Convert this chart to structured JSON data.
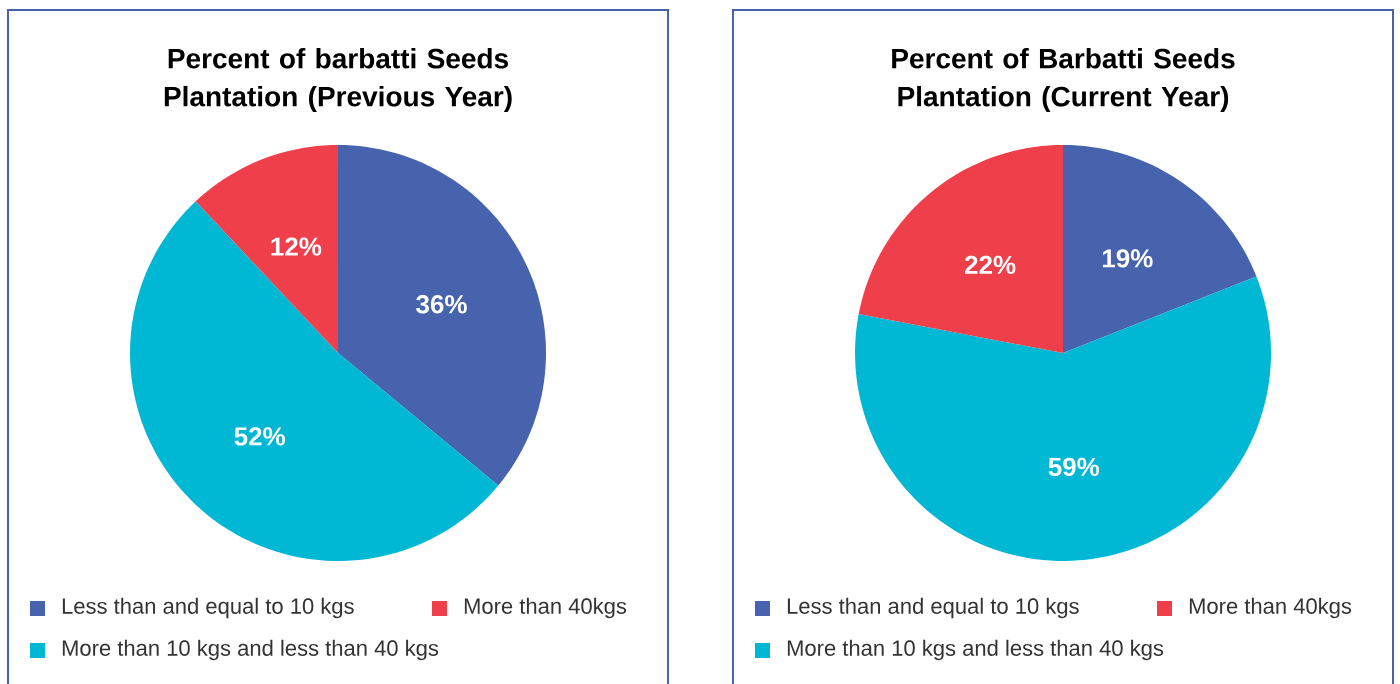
{
  "chart_data": [
    {
      "type": "pie",
      "title": "Percent of barbatti Seeds Plantation (Previous Year)",
      "categories": [
        "Less than and equal to 10 kgs",
        "More than 10 kgs and less than 40 kgs",
        "More than 40kgs"
      ],
      "values": [
        36,
        52,
        12
      ],
      "value_labels": [
        "36%",
        "52%",
        "12%"
      ],
      "colors": [
        "#4763ae",
        "#00b8d4",
        "#ef3f4a"
      ],
      "legend": "bottom"
    },
    {
      "type": "pie",
      "title": "Percent of Barbatti Seeds Plantation (Current Year)",
      "categories": [
        "Less than and equal to 10 kgs",
        "More than 10 kgs and less than 40 kgs",
        "More than 40kgs"
      ],
      "values": [
        19,
        59,
        22
      ],
      "value_labels": [
        "19%",
        "59%",
        "22%"
      ],
      "colors": [
        "#4763ae",
        "#00b8d4",
        "#ef3f4a"
      ],
      "legend": "bottom"
    }
  ]
}
